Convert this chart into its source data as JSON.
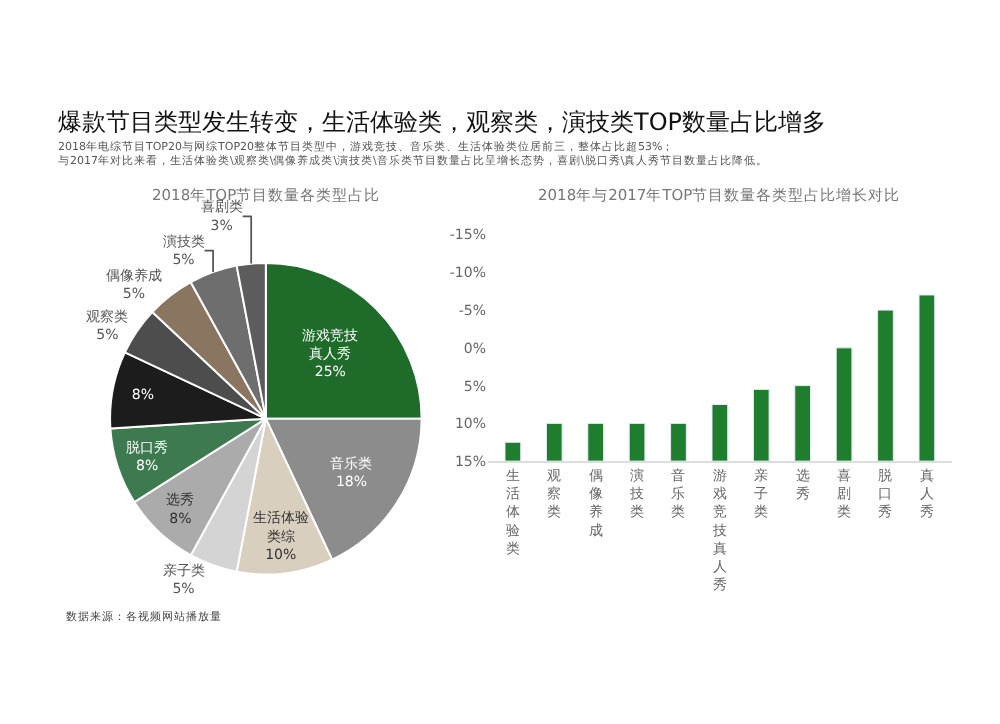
{
  "chart_data": [
    {
      "type": "pie",
      "title": "2018年TOP节目数量各类型占比",
      "annotations": [
        "爆款节目类型发生转变，生活体验类，观察类，演技类TOP数量占比增多",
        "2018年电综节目TOP20与网综TOP20整体节目类型中，游戏竞技、音乐类、生活体验类位居前三，整体占比超53%；",
        "与2017年对比来看，生活体验类\\观察类\\偶像养成类\\演技类\\音乐类节目数量占比呈增长态势，喜剧\\脱口秀\\真人秀节目数量占比降低。",
        "数据来源：各视频网站播放量"
      ],
      "categories": [
        "游戏竞技真人秀",
        "音乐类",
        "生活体验类综",
        "亲子类",
        "选秀",
        "脱口秀",
        null,
        "观察类",
        "偶像养成",
        "演技类",
        "喜剧类"
      ],
      "values": [
        25,
        18,
        10,
        5,
        8,
        8,
        8,
        5,
        5,
        5,
        3
      ],
      "value_labels": [
        "25%",
        "18%",
        "10%",
        "5%",
        "8%",
        "8%",
        "8%",
        "5%",
        "5%",
        "5%",
        "3%"
      ],
      "colors": [
        "#1e6b2a",
        "#8c8c8c",
        "#d9cfbf",
        "#d4d4d4",
        "#ababab",
        "#3e7a50",
        "#1c1c1c",
        "#4d4d4d",
        "#8a7560",
        "#6e6e6e",
        "#5c5c5c"
      ]
    },
    {
      "type": "bar",
      "title": "2018年与2017年TOP节目数量各类型占比增长对比",
      "categories": [
        "生活体验类",
        "观察类",
        "偶像养成",
        "演技类",
        "音乐类",
        "游戏竞技真人秀",
        "亲子类",
        "选秀",
        "喜剧类",
        "脱口秀",
        "真人秀"
      ],
      "base": [
        15,
        15,
        15,
        15,
        15,
        15,
        15,
        15,
        15,
        15,
        15
      ],
      "values": [
        -2.5,
        -5,
        -5,
        -5,
        -5,
        -7.5,
        -9.5,
        -10,
        -15,
        -20,
        -22
      ],
      "color": "#1f7d2e",
      "ylim": [
        15,
        -15
      ],
      "yticks": [
        {
          "value": -15,
          "label": "-15%"
        },
        {
          "value": -10,
          "label": "-10%"
        },
        {
          "value": -5,
          "label": "-5%"
        },
        {
          "value": 0,
          "label": "0%"
        },
        {
          "value": 5,
          "label": "5%"
        },
        {
          "value": 10,
          "label": "10%"
        },
        {
          "value": 15,
          "label": "15%"
        }
      ]
    }
  ]
}
